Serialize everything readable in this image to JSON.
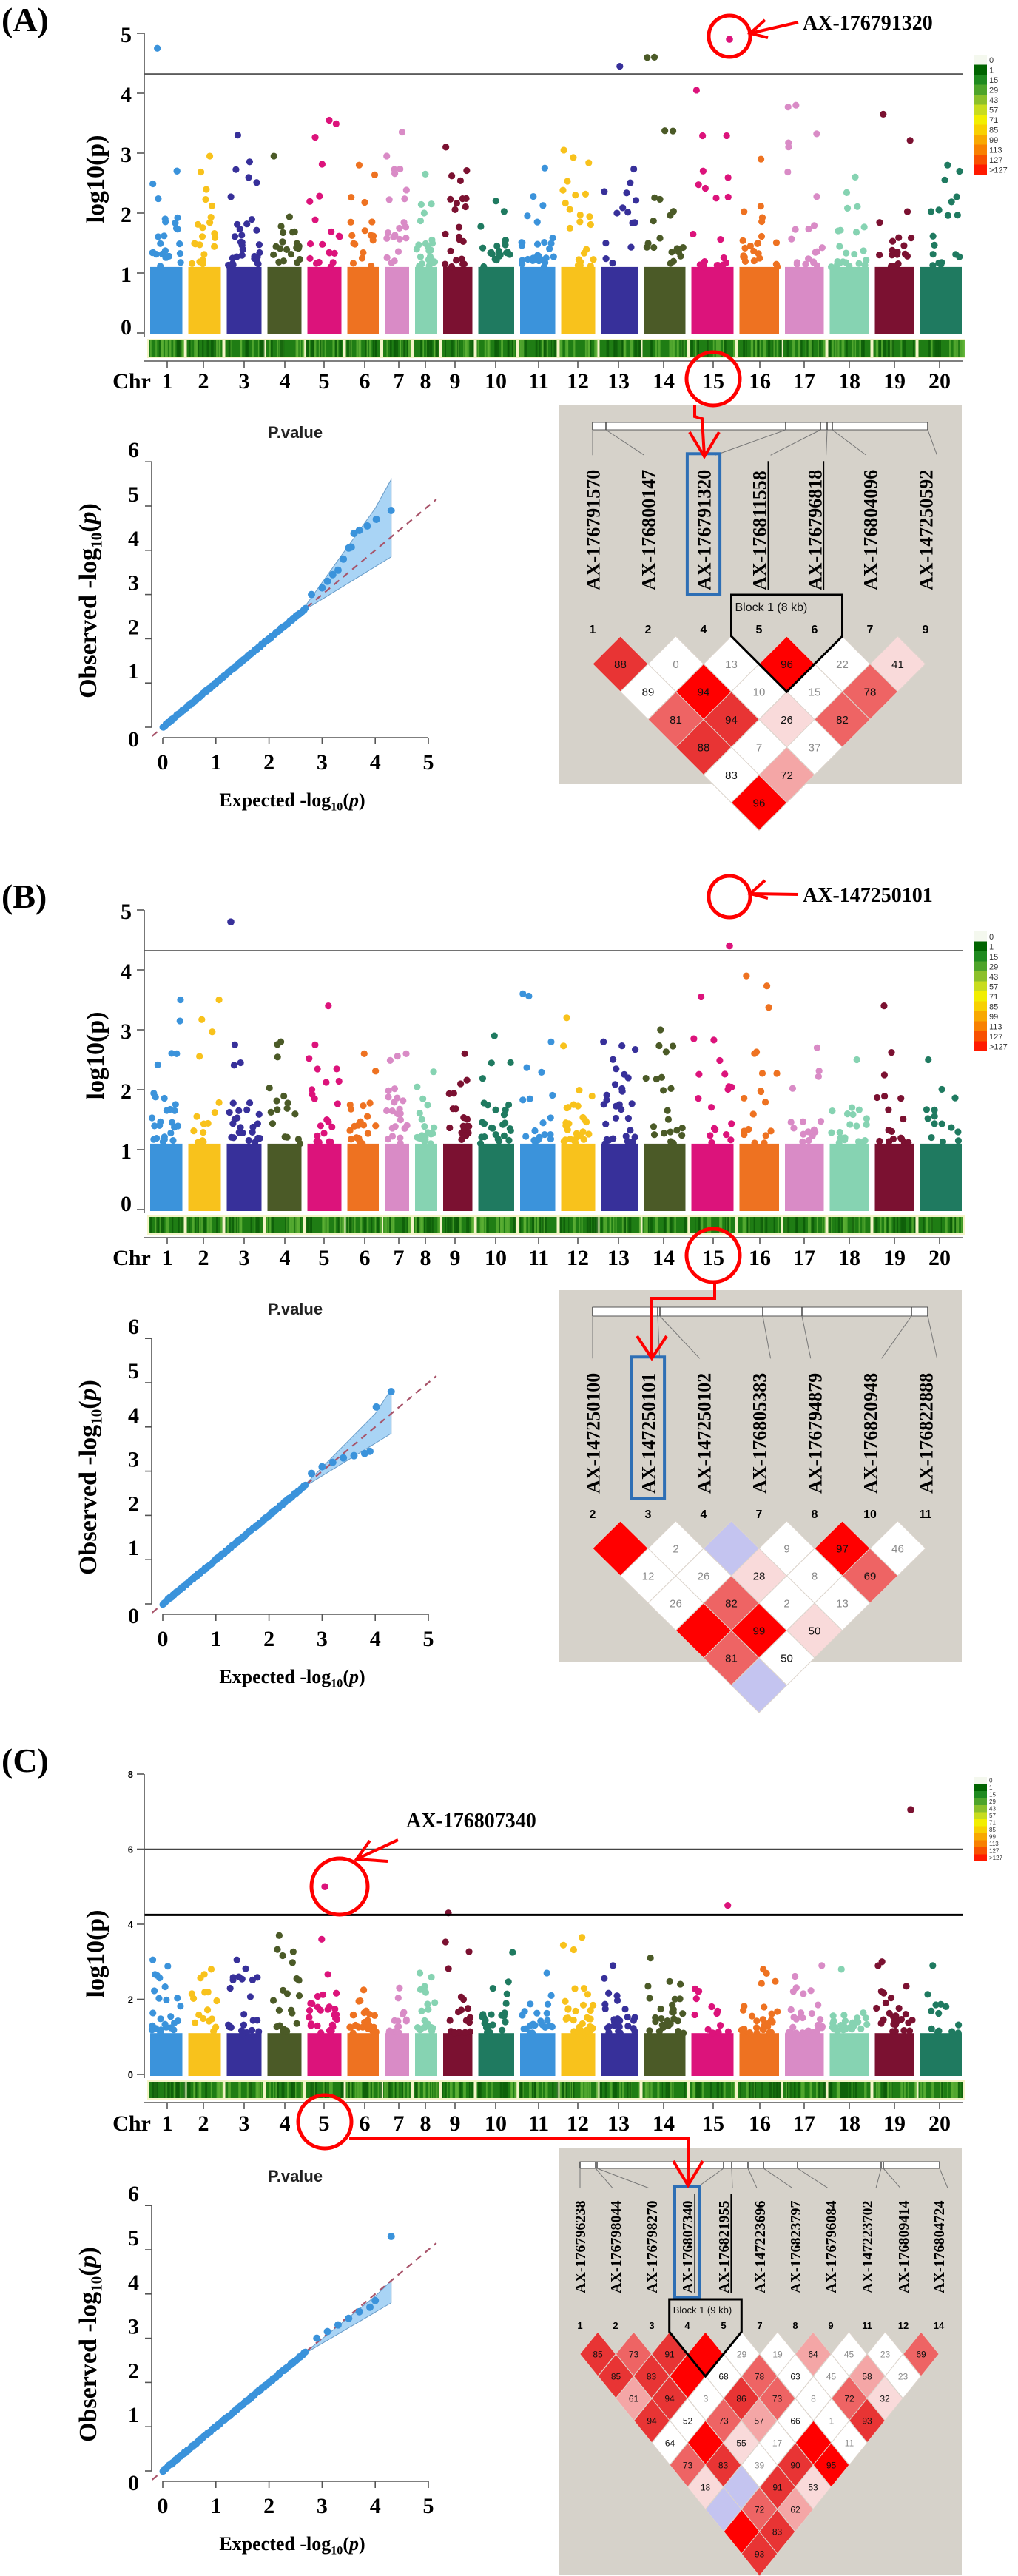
{
  "shared": {
    "chromosomes": [
      "1",
      "2",
      "3",
      "4",
      "5",
      "6",
      "7",
      "8",
      "9",
      "10",
      "11",
      "12",
      "13",
      "14",
      "15",
      "16",
      "17",
      "18",
      "19",
      "20"
    ],
    "chr_colors": [
      "#3b93db",
      "#f8c21c",
      "#37309a",
      "#4b5a27",
      "#dc137b",
      "#ee7221",
      "#d98bc6",
      "#86d3b2",
      "#7b1131",
      "#1f7a60",
      "#3b93db",
      "#f8c21c",
      "#37309a",
      "#4b5a27",
      "#dc137b",
      "#ee7221",
      "#d98bc6",
      "#86d3b2",
      "#7b1131",
      "#1f7a60"
    ],
    "chr_axis_label": "Chr",
    "manhattan_ylabel": "log10(p)",
    "qq_title": "P.value",
    "qq_xlabel": "Expected -log10(p)",
    "qq_ylabel": "Observed -log10(p)",
    "legend_labels": [
      "0",
      "1",
      "15",
      "29",
      "43",
      "57",
      "71",
      "85",
      "99",
      "113",
      "127",
      ">127"
    ],
    "legend_colors": [
      "#f4f8ee",
      "#006400",
      "#1f8a1f",
      "#4ea42a",
      "#8cc02a",
      "#c8dc1e",
      "#f2ee00",
      "#f8d000",
      "#f8a800",
      "#f88000",
      "#f85000",
      "#ff1a00"
    ],
    "ld_palette": {
      "R": "#ff0000",
      "r": "#e83434",
      "m": "#ee6464",
      "p": "#f4a6a6",
      "q": "#f9dada",
      "w": "#ffffff",
      "g": "#ffffff",
      "b": "#c4c4f0"
    },
    "accent_red": "#ff0000",
    "box_blue": "#2e6fb5",
    "ld_background": "#d6d2ca"
  },
  "chart_data": [
    {
      "panel": "(A)",
      "manhattan": {
        "type": "scatter",
        "ylim": [
          0,
          5
        ],
        "yticks": [
          "0",
          "1",
          "2",
          "3",
          "4",
          "5"
        ],
        "thresholds": [
          4.32
        ],
        "chr_max": [
          4.75,
          2.95,
          3.3,
          2.95,
          3.55,
          2.8,
          3.35,
          2.65,
          3.1,
          2.2,
          2.75,
          3.05,
          4.45,
          4.6,
          4.05,
          2.9,
          3.8,
          2.6,
          3.65,
          2.8
        ],
        "peak": {
          "label": "AX-176791320",
          "chr": 15,
          "value": 4.9
        },
        "extra_points": []
      },
      "qq": {
        "type": "scatter",
        "xlim": [
          0,
          5
        ],
        "ylim": [
          0,
          6
        ],
        "xticks": [
          "0",
          "1",
          "2",
          "3",
          "4",
          "5"
        ],
        "yticks": [
          "0",
          "1",
          "2",
          "3",
          "4",
          "5",
          "6"
        ],
        "band": [
          [
            2.6,
            2.6
          ],
          [
            4.0,
            4.95
          ],
          [
            4.3,
            5.6
          ],
          [
            4.3,
            3.85
          ],
          [
            2.6,
            2.6
          ]
        ],
        "tail_points": [
          [
            2.8,
            3.0
          ],
          [
            3.0,
            3.15
          ],
          [
            3.1,
            3.3
          ],
          [
            3.2,
            3.45
          ],
          [
            3.3,
            3.55
          ],
          [
            3.4,
            3.8
          ],
          [
            3.5,
            4.05
          ],
          [
            3.55,
            4.07
          ],
          [
            3.6,
            4.38
          ],
          [
            3.7,
            4.45
          ],
          [
            3.85,
            4.55
          ],
          [
            4.02,
            4.7
          ],
          [
            4.3,
            4.9
          ]
        ]
      },
      "ld": {
        "type": "heatmap",
        "markers": [
          {
            "index": "1",
            "name": "AX-176791570"
          },
          {
            "index": "2",
            "name": "AX-176800147"
          },
          {
            "index": "4",
            "name": "AX-176791320"
          },
          {
            "index": "5",
            "name": "AX-176811558"
          },
          {
            "index": "6",
            "name": "AX-176796818"
          },
          {
            "index": "7",
            "name": "AX-176804096"
          },
          {
            "index": "9",
            "name": "AX-147250592"
          }
        ],
        "highlighted": 2,
        "underlined": [
          3,
          4
        ],
        "block": {
          "label": "Block 1 (8 kb)",
          "from": 3,
          "to": 4
        },
        "cells": [
          [
            [
              "88",
              "r"
            ],
            [
              "0",
              "g"
            ],
            [
              "13",
              "g"
            ],
            [
              "96",
              "R"
            ],
            [
              "22",
              "g"
            ],
            [
              "41",
              "q"
            ]
          ],
          [
            [
              "89",
              "w"
            ],
            [
              "94",
              "R"
            ],
            [
              "10",
              "g"
            ],
            [
              "15",
              "g"
            ],
            [
              "78",
              "m"
            ]
          ],
          [
            [
              "81",
              "m"
            ],
            [
              "94",
              "r"
            ],
            [
              "26",
              "q"
            ],
            [
              "82",
              "m"
            ]
          ],
          [
            [
              "88",
              "r"
            ],
            [
              "7",
              "g"
            ],
            [
              "37",
              "g"
            ]
          ],
          [
            [
              "83",
              "w"
            ],
            [
              "72",
              "p"
            ]
          ],
          [
            [
              "96",
              "R"
            ]
          ]
        ]
      }
    },
    {
      "panel": "(B)",
      "manhattan": {
        "type": "scatter",
        "ylim": [
          0,
          5
        ],
        "yticks": [
          "0",
          "1",
          "2",
          "3",
          "4",
          "5"
        ],
        "thresholds": [
          4.32
        ],
        "chr_max": [
          3.5,
          3.5,
          2.75,
          2.8,
          3.4,
          2.6,
          2.6,
          2.3,
          2.6,
          2.9,
          3.6,
          3.2,
          2.8,
          3.0,
          3.55,
          3.9,
          2.7,
          2.5,
          3.4,
          2.5
        ],
        "peak": {
          "label": "AX-147250101",
          "chr": 15,
          "value": 4.4
        },
        "extra_points": [
          {
            "chr": 3,
            "value": 4.8
          }
        ]
      },
      "qq": {
        "type": "scatter",
        "xlim": [
          0,
          5
        ],
        "ylim": [
          0,
          6
        ],
        "xticks": [
          "0",
          "1",
          "2",
          "3",
          "4",
          "5"
        ],
        "yticks": [
          "0",
          "1",
          "2",
          "3",
          "4",
          "5",
          "6"
        ],
        "band": [
          [
            2.6,
            2.6
          ],
          [
            4.0,
            4.3
          ],
          [
            4.3,
            4.85
          ],
          [
            4.3,
            3.85
          ],
          [
            2.6,
            2.6
          ]
        ],
        "tail_points": [
          [
            2.8,
            2.95
          ],
          [
            3.0,
            3.1
          ],
          [
            3.2,
            3.2
          ],
          [
            3.4,
            3.3
          ],
          [
            3.6,
            3.35
          ],
          [
            3.8,
            3.4
          ],
          [
            3.9,
            3.45
          ],
          [
            4.02,
            4.45
          ],
          [
            4.3,
            4.8
          ]
        ]
      },
      "ld": {
        "type": "heatmap",
        "markers": [
          {
            "index": "2",
            "name": "AX-147250100"
          },
          {
            "index": "3",
            "name": "AX-147250101"
          },
          {
            "index": "4",
            "name": "AX-147250102"
          },
          {
            "index": "7",
            "name": "AX-176805383"
          },
          {
            "index": "8",
            "name": "AX-176794879"
          },
          {
            "index": "10",
            "name": "AX-176820948"
          },
          {
            "index": "11",
            "name": "AX-176822888"
          }
        ],
        "highlighted": 1,
        "underlined": [],
        "block": null,
        "cells": [
          [
            [
              "",
              "R"
            ],
            [
              "2",
              "g"
            ],
            [
              "",
              "b"
            ],
            [
              "9",
              "g"
            ],
            [
              "97",
              "R"
            ],
            [
              "46",
              "g"
            ]
          ],
          [
            [
              "12",
              "g"
            ],
            [
              "26",
              "g"
            ],
            [
              "28",
              "q"
            ],
            [
              "8",
              "g"
            ],
            [
              "69",
              "m"
            ]
          ],
          [
            [
              "26",
              "g"
            ],
            [
              "82",
              "m"
            ],
            [
              "2",
              "g"
            ],
            [
              "13",
              "g"
            ]
          ],
          [
            [
              "",
              "R"
            ],
            [
              "99",
              "R"
            ],
            [
              "50",
              "q"
            ]
          ],
          [
            [
              "81",
              "m"
            ],
            [
              "50",
              "w"
            ]
          ],
          [
            [
              "",
              "b"
            ]
          ]
        ]
      }
    },
    {
      "panel": "(C)",
      "manhattan": {
        "type": "scatter",
        "ylim": [
          0,
          8
        ],
        "yticks": [
          "0",
          "2",
          "4",
          "6",
          "8"
        ],
        "thresholds": [
          6,
          4.25
        ],
        "chr_max": [
          3.05,
          2.8,
          3.05,
          3.7,
          3.6,
          2.25,
          2.3,
          2.7,
          4.3,
          3.25,
          2.7,
          3.65,
          2.9,
          3.1,
          4.5,
          2.8,
          2.9,
          2.8,
          3.0,
          2.9
        ],
        "peak": {
          "label": "AX-176807340",
          "chr": 5,
          "value": 5.0
        },
        "extra_points": [
          {
            "chr": 19,
            "value": 7.05
          }
        ]
      },
      "qq": {
        "type": "scatter",
        "xlim": [
          0,
          5
        ],
        "ylim": [
          0,
          6
        ],
        "xticks": [
          "0",
          "1",
          "2",
          "3",
          "4",
          "5"
        ],
        "yticks": [
          "0",
          "1",
          "2",
          "3",
          "4",
          "5",
          "6"
        ],
        "band": [
          [
            2.6,
            2.6
          ],
          [
            4.0,
            3.95
          ],
          [
            4.3,
            4.3
          ],
          [
            4.3,
            3.8
          ],
          [
            2.6,
            2.6
          ]
        ],
        "tail_points": [
          [
            2.9,
            3.0
          ],
          [
            3.1,
            3.15
          ],
          [
            3.3,
            3.3
          ],
          [
            3.5,
            3.45
          ],
          [
            3.7,
            3.6
          ],
          [
            3.9,
            3.7
          ],
          [
            4.0,
            3.85
          ],
          [
            4.3,
            5.3
          ]
        ]
      },
      "ld": {
        "type": "heatmap",
        "markers": [
          {
            "index": "1",
            "name": "AX-176796238"
          },
          {
            "index": "2",
            "name": "AX-176798044"
          },
          {
            "index": "3",
            "name": "AX-176798270"
          },
          {
            "index": "4",
            "name": "AX-176807340"
          },
          {
            "index": "5",
            "name": "AX-176821955"
          },
          {
            "index": "7",
            "name": "AX-147223696"
          },
          {
            "index": "8",
            "name": "AX-176823797"
          },
          {
            "index": "9",
            "name": "AX-176796084"
          },
          {
            "index": "11",
            "name": "AX-147223702"
          },
          {
            "index": "12",
            "name": "AX-176809414"
          },
          {
            "index": "14",
            "name": "AX-176804724"
          }
        ],
        "highlighted": 3,
        "underlined": [
          3,
          4
        ],
        "block": {
          "label": "Block 1 (9 kb)",
          "from": 3,
          "to": 4
        },
        "cells": [
          [
            [
              "85",
              "r"
            ],
            [
              "73",
              "m"
            ],
            [
              "91",
              "r"
            ],
            [
              "",
              "R"
            ],
            [
              "29",
              "g"
            ],
            [
              "19",
              "g"
            ],
            [
              "64",
              "p"
            ],
            [
              "45",
              "g"
            ],
            [
              "23",
              "g"
            ],
            [
              "69",
              "m"
            ]
          ],
          [
            [
              "85",
              "r"
            ],
            [
              "83",
              "r"
            ],
            [
              "",
              "R"
            ],
            [
              "68",
              "w"
            ],
            [
              "78",
              "m"
            ],
            [
              "63",
              "w"
            ],
            [
              "45",
              "g"
            ],
            [
              "58",
              "p"
            ],
            [
              "23",
              "g"
            ]
          ],
          [
            [
              "61",
              "p"
            ],
            [
              "94",
              "r"
            ],
            [
              "3",
              "g"
            ],
            [
              "86",
              "r"
            ],
            [
              "73",
              "m"
            ],
            [
              "8",
              "g"
            ],
            [
              "72",
              "m"
            ],
            [
              "32",
              "q"
            ]
          ],
          [
            [
              "94",
              "r"
            ],
            [
              "52",
              "w"
            ],
            [
              "73",
              "m"
            ],
            [
              "57",
              "p"
            ],
            [
              "66",
              "w"
            ],
            [
              "1",
              "g"
            ],
            [
              "93",
              "r"
            ]
          ],
          [
            [
              "64",
              "w"
            ],
            [
              "",
              "R"
            ],
            [
              "55",
              "q"
            ],
            [
              "17",
              "g"
            ],
            [
              "",
              "R"
            ],
            [
              "11",
              "g"
            ]
          ],
          [
            [
              "73",
              "m"
            ],
            [
              "83",
              "r"
            ],
            [
              "39",
              "g"
            ],
            [
              "90",
              "r"
            ],
            [
              "95",
              "R"
            ]
          ],
          [
            [
              "18",
              "q"
            ],
            [
              "",
              "b"
            ],
            [
              "91",
              "r"
            ],
            [
              "53",
              "q"
            ]
          ],
          [
            [
              "",
              "b"
            ],
            [
              "72",
              "m"
            ],
            [
              "62",
              "p"
            ]
          ],
          [
            [
              "",
              "R"
            ],
            [
              "83",
              "r"
            ]
          ],
          [
            [
              "93",
              "r"
            ]
          ]
        ]
      }
    }
  ]
}
